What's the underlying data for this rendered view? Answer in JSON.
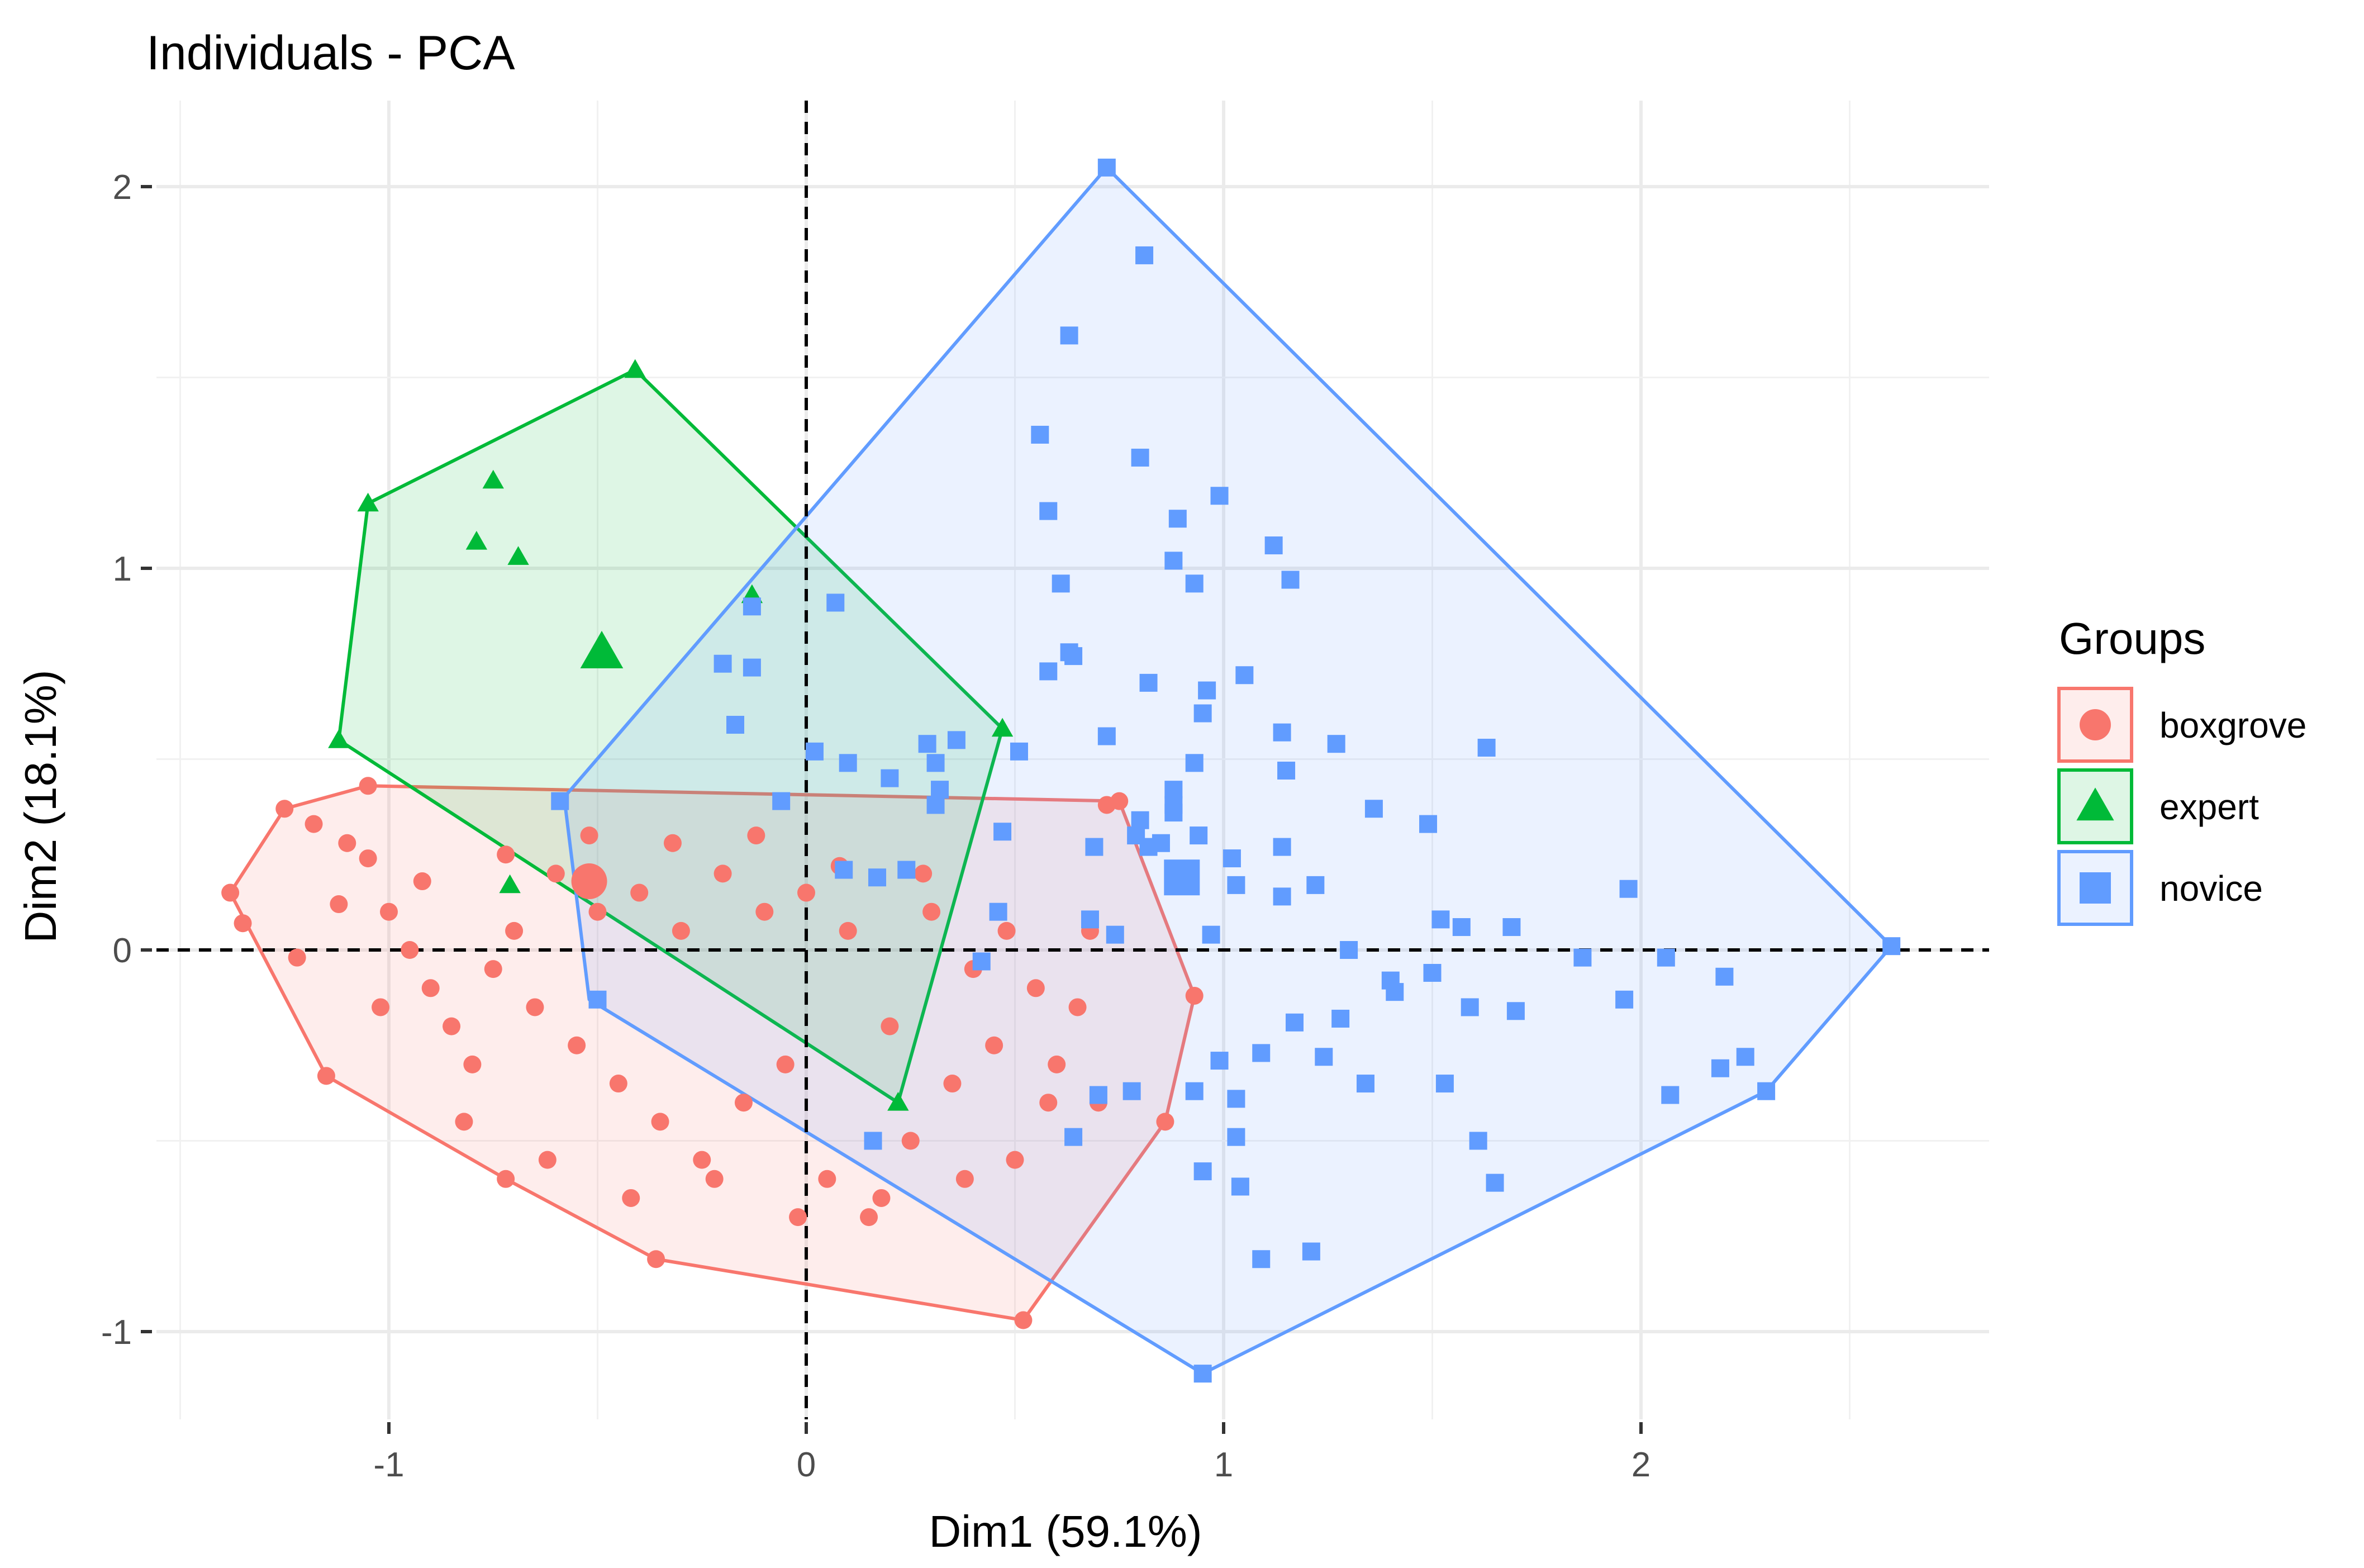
{
  "chart_data": {
    "type": "scatter",
    "title": "Individuals - PCA",
    "xlabel": "Dim1 (59.1%)",
    "ylabel": "Dim2 (18.1%)",
    "xlim": [
      -1.5,
      2.8
    ],
    "ylim": [
      -1.25,
      2.2
    ],
    "x_ticks": [
      -1,
      0,
      1,
      2
    ],
    "y_ticks": [
      -1,
      0,
      1,
      2
    ],
    "x_tick_labels": [
      "-1",
      "0",
      "1",
      "2"
    ],
    "y_tick_labels": [
      "-1",
      "0",
      "1",
      "2"
    ],
    "grid": true,
    "reference_lines": {
      "x": 0,
      "y": 0,
      "style": "dashed"
    },
    "legend": {
      "title": "Groups",
      "placement": "right"
    },
    "series": [
      {
        "name": "boxgrove",
        "marker": "circle",
        "color": "#F8766D",
        "centroid": [
          -0.52,
          0.18
        ],
        "hull": [
          [
            -1.38,
            0.15
          ],
          [
            -1.25,
            0.37
          ],
          [
            -1.05,
            0.43
          ],
          [
            0.75,
            0.39
          ],
          [
            0.93,
            -0.12
          ],
          [
            0.86,
            -0.45
          ],
          [
            0.52,
            -0.97
          ],
          [
            -0.36,
            -0.81
          ],
          [
            -0.72,
            -0.6
          ],
          [
            -1.15,
            -0.33
          ],
          [
            -1.38,
            0.15
          ]
        ],
        "points": [
          [
            -1.38,
            0.15
          ],
          [
            -1.35,
            0.07
          ],
          [
            -1.25,
            0.37
          ],
          [
            -1.15,
            -0.33
          ],
          [
            -1.05,
            0.43
          ],
          [
            -0.72,
            -0.6
          ],
          [
            -0.36,
            -0.81
          ],
          [
            0.52,
            -0.97
          ],
          [
            0.86,
            -0.45
          ],
          [
            0.93,
            -0.12
          ],
          [
            0.75,
            0.39
          ],
          [
            -1.18,
            0.33
          ],
          [
            -1.1,
            0.28
          ],
          [
            -1.05,
            0.24
          ],
          [
            -1.0,
            0.1
          ],
          [
            -0.95,
            0.0
          ],
          [
            -0.9,
            -0.1
          ],
          [
            -0.85,
            -0.2
          ],
          [
            -0.8,
            -0.3
          ],
          [
            -0.75,
            -0.05
          ],
          [
            -0.7,
            0.05
          ],
          [
            -0.65,
            -0.15
          ],
          [
            -0.6,
            0.2
          ],
          [
            -0.55,
            -0.25
          ],
          [
            -0.5,
            0.1
          ],
          [
            -0.45,
            -0.35
          ],
          [
            -0.4,
            0.15
          ],
          [
            -0.35,
            -0.45
          ],
          [
            -0.3,
            0.05
          ],
          [
            -0.25,
            -0.55
          ],
          [
            -0.2,
            0.2
          ],
          [
            -0.15,
            -0.4
          ],
          [
            -0.1,
            0.1
          ],
          [
            -0.05,
            -0.3
          ],
          [
            0.0,
            0.15
          ],
          [
            0.05,
            -0.6
          ],
          [
            0.1,
            0.05
          ],
          [
            0.15,
            -0.7
          ],
          [
            0.2,
            -0.2
          ],
          [
            0.25,
            -0.5
          ],
          [
            0.3,
            0.1
          ],
          [
            0.35,
            -0.35
          ],
          [
            0.4,
            -0.05
          ],
          [
            0.45,
            -0.25
          ],
          [
            0.5,
            -0.55
          ],
          [
            0.55,
            -0.1
          ],
          [
            0.6,
            -0.3
          ],
          [
            0.65,
            -0.15
          ],
          [
            0.7,
            -0.4
          ],
          [
            0.72,
            0.38
          ],
          [
            -1.22,
            -0.02
          ],
          [
            -1.12,
            0.12
          ],
          [
            -1.02,
            -0.15
          ],
          [
            -0.92,
            0.18
          ],
          [
            -0.82,
            -0.45
          ],
          [
            -0.72,
            0.25
          ],
          [
            -0.62,
            -0.55
          ],
          [
            -0.52,
            0.3
          ],
          [
            -0.42,
            -0.65
          ],
          [
            -0.32,
            0.28
          ],
          [
            -0.22,
            -0.6
          ],
          [
            -0.12,
            0.3
          ],
          [
            -0.02,
            -0.7
          ],
          [
            0.08,
            0.22
          ],
          [
            0.18,
            -0.65
          ],
          [
            0.28,
            0.2
          ],
          [
            0.38,
            -0.6
          ],
          [
            0.48,
            0.05
          ],
          [
            0.58,
            -0.4
          ],
          [
            0.68,
            0.05
          ]
        ]
      },
      {
        "name": "expert",
        "marker": "triangle",
        "color": "#00BA38",
        "centroid": [
          -0.49,
          0.78
        ],
        "hull": [
          [
            -1.12,
            0.55
          ],
          [
            -1.05,
            1.17
          ],
          [
            -0.41,
            1.52
          ],
          [
            0.47,
            0.58
          ],
          [
            0.22,
            -0.4
          ],
          [
            -1.12,
            0.55
          ]
        ],
        "points": [
          [
            -1.12,
            0.55
          ],
          [
            -1.05,
            1.17
          ],
          [
            -0.75,
            1.23
          ],
          [
            -0.79,
            1.07
          ],
          [
            -0.69,
            1.03
          ],
          [
            -0.41,
            1.52
          ],
          [
            -0.13,
            0.93
          ],
          [
            0.47,
            0.58
          ],
          [
            0.22,
            -0.4
          ],
          [
            -0.71,
            0.17
          ]
        ]
      },
      {
        "name": "novice",
        "marker": "square",
        "color": "#619CFF",
        "centroid": [
          0.9,
          0.19
        ],
        "hull": [
          [
            -0.58,
            0.4
          ],
          [
            0.72,
            2.05
          ],
          [
            2.6,
            0.01
          ],
          [
            2.3,
            -0.37
          ],
          [
            0.95,
            -1.11
          ],
          [
            -0.52,
            -0.13
          ],
          [
            -0.58,
            0.4
          ]
        ],
        "points": [
          [
            0.72,
            2.05
          ],
          [
            0.81,
            1.82
          ],
          [
            0.63,
            1.61
          ],
          [
            0.56,
            1.35
          ],
          [
            0.8,
            1.29
          ],
          [
            0.99,
            1.19
          ],
          [
            0.58,
            1.15
          ],
          [
            0.89,
            1.13
          ],
          [
            1.12,
            1.06
          ],
          [
            0.88,
            1.02
          ],
          [
            1.16,
            0.97
          ],
          [
            0.61,
            0.96
          ],
          [
            0.93,
            0.96
          ],
          [
            0.07,
            0.91
          ],
          [
            -0.13,
            0.9
          ],
          [
            0.63,
            0.78
          ],
          [
            0.64,
            0.77
          ],
          [
            -0.2,
            0.75
          ],
          [
            -0.13,
            0.74
          ],
          [
            0.58,
            0.73
          ],
          [
            1.05,
            0.72
          ],
          [
            0.82,
            0.7
          ],
          [
            0.96,
            0.68
          ],
          [
            0.95,
            0.62
          ],
          [
            -0.17,
            0.59
          ],
          [
            1.14,
            0.57
          ],
          [
            0.72,
            0.56
          ],
          [
            0.36,
            0.55
          ],
          [
            0.29,
            0.54
          ],
          [
            1.27,
            0.54
          ],
          [
            1.63,
            0.53
          ],
          [
            0.02,
            0.52
          ],
          [
            0.51,
            0.52
          ],
          [
            0.1,
            0.49
          ],
          [
            0.93,
            0.49
          ],
          [
            0.31,
            0.49
          ],
          [
            1.15,
            0.47
          ],
          [
            0.2,
            0.45
          ],
          [
            0.32,
            0.42
          ],
          [
            0.88,
            0.42
          ],
          [
            0.88,
            0.38
          ],
          [
            -0.59,
            0.39
          ],
          [
            -0.06,
            0.39
          ],
          [
            0.31,
            0.38
          ],
          [
            1.36,
            0.37
          ],
          [
            0.88,
            0.36
          ],
          [
            0.8,
            0.34
          ],
          [
            1.49,
            0.33
          ],
          [
            0.47,
            0.31
          ],
          [
            0.79,
            0.3
          ],
          [
            0.94,
            0.3
          ],
          [
            0.85,
            0.28
          ],
          [
            0.69,
            0.27
          ],
          [
            0.82,
            0.27
          ],
          [
            1.14,
            0.27
          ],
          [
            1.02,
            0.24
          ],
          [
            0.24,
            0.21
          ],
          [
            0.09,
            0.21
          ],
          [
            0.91,
            0.2
          ],
          [
            0.17,
            0.19
          ],
          [
            1.03,
            0.17
          ],
          [
            1.22,
            0.17
          ],
          [
            1.97,
            0.16
          ],
          [
            1.14,
            0.14
          ],
          [
            0.46,
            0.1
          ],
          [
            1.52,
            0.08
          ],
          [
            0.68,
            0.08
          ],
          [
            1.57,
            0.06
          ],
          [
            1.69,
            0.06
          ],
          [
            0.74,
            0.04
          ],
          [
            0.97,
            0.04
          ],
          [
            1.3,
            0.0
          ],
          [
            1.86,
            -0.02
          ],
          [
            2.06,
            -0.02
          ],
          [
            0.42,
            -0.03
          ],
          [
            2.2,
            -0.07
          ],
          [
            1.5,
            -0.06
          ],
          [
            1.4,
            -0.08
          ],
          [
            1.41,
            -0.11
          ],
          [
            1.59,
            -0.15
          ],
          [
            1.7,
            -0.16
          ],
          [
            1.96,
            -0.13
          ],
          [
            1.17,
            -0.19
          ],
          [
            1.28,
            -0.18
          ],
          [
            0.99,
            -0.29
          ],
          [
            1.09,
            -0.27
          ],
          [
            1.24,
            -0.28
          ],
          [
            2.25,
            -0.28
          ],
          [
            2.19,
            -0.31
          ],
          [
            0.7,
            -0.38
          ],
          [
            0.93,
            -0.37
          ],
          [
            1.03,
            -0.39
          ],
          [
            1.34,
            -0.35
          ],
          [
            1.53,
            -0.35
          ],
          [
            2.07,
            -0.38
          ],
          [
            0.78,
            -0.37
          ],
          [
            1.03,
            -0.49
          ],
          [
            0.64,
            -0.49
          ],
          [
            1.61,
            -0.5
          ],
          [
            0.95,
            -0.58
          ],
          [
            1.04,
            -0.62
          ],
          [
            1.65,
            -0.61
          ],
          [
            1.09,
            -0.81
          ],
          [
            1.21,
            -0.79
          ],
          [
            0.95,
            -1.11
          ],
          [
            2.3,
            -0.37
          ],
          [
            2.6,
            0.01
          ],
          [
            -0.5,
            -0.13
          ],
          [
            0.16,
            -0.5
          ]
        ]
      }
    ]
  }
}
